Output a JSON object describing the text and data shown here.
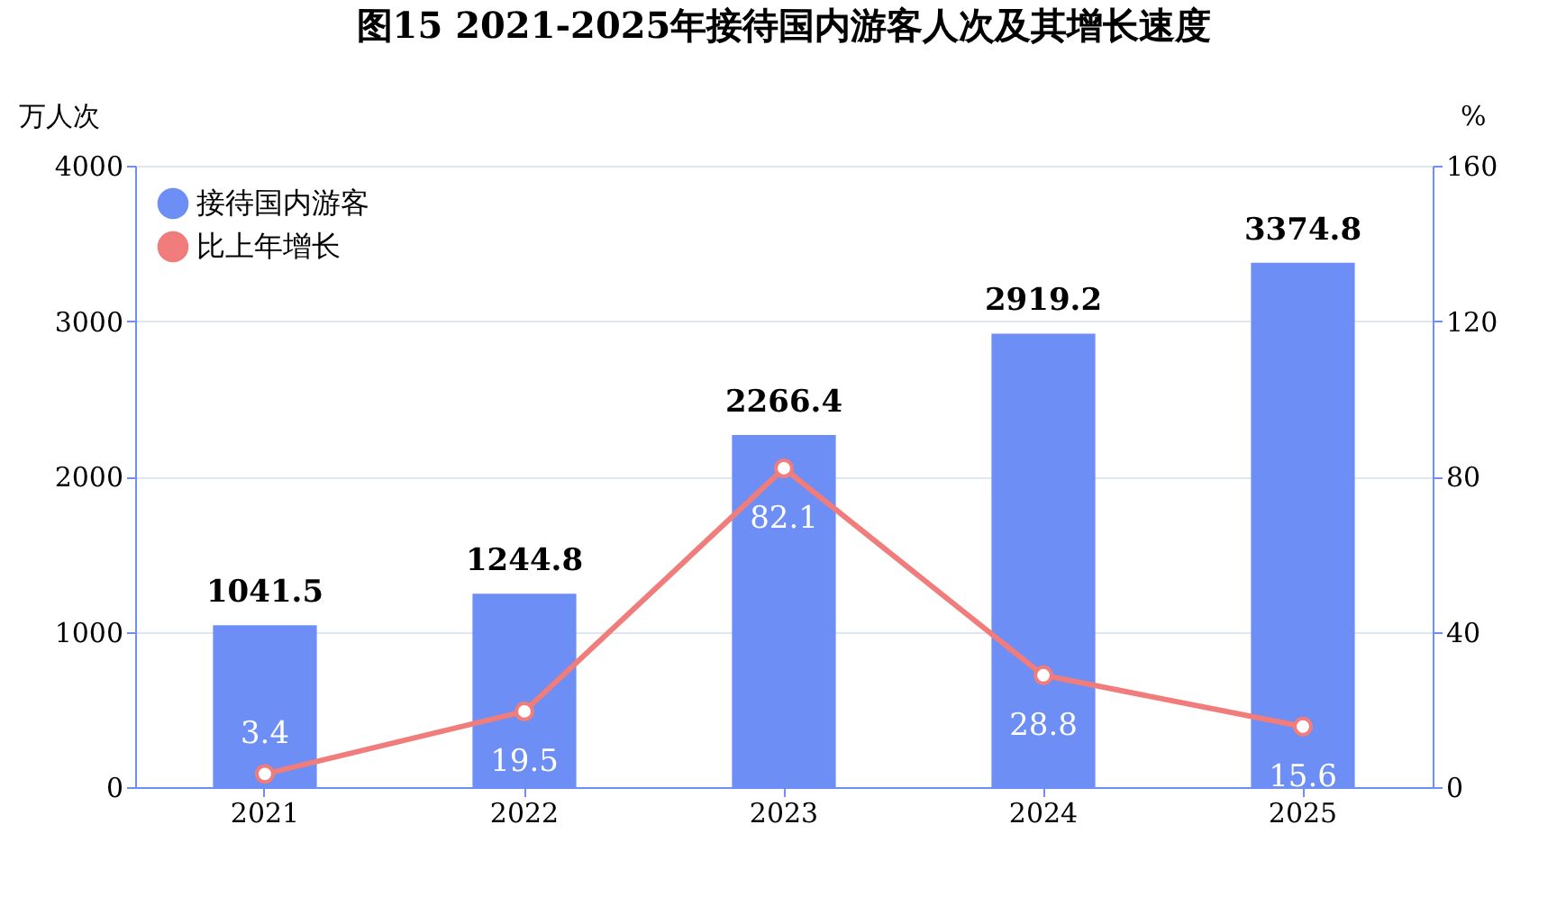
{
  "chart_data": {
    "type": "bar",
    "title": "图15  2021-2025年接待国内游客人次及其增长速度",
    "categories": [
      "2021",
      "2022",
      "2023",
      "2024",
      "2025"
    ],
    "series": [
      {
        "name": "接待国内游客",
        "color": "#6d8ef5",
        "values": [
          1041.5,
          1244.8,
          2266.4,
          2919.2,
          3374.8
        ]
      },
      {
        "name": "比上年增长",
        "type": "line",
        "axis": "y2",
        "color": "#f07c7c",
        "marker": "circle",
        "values": [
          3.4,
          19.5,
          82.1,
          28.8,
          15.6
        ]
      }
    ],
    "ylabel": "万人次",
    "y2label": "%",
    "ylim": [
      0,
      4000
    ],
    "yticks": [
      0,
      1000,
      2000,
      3000,
      4000
    ],
    "y2lim": [
      0,
      160
    ],
    "y2ticks": [
      0,
      40,
      80,
      120,
      160
    ],
    "data_labels": true,
    "grid": "y",
    "legend": "top left"
  }
}
